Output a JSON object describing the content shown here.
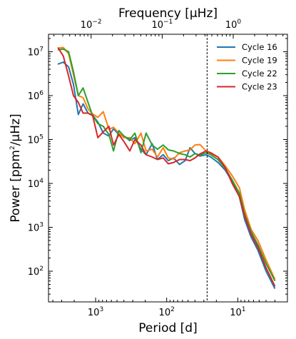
{
  "chart_data": {
    "type": "line",
    "xlabel": "Period [d]",
    "top_xlabel": "Frequency [μHz]",
    "ylabel_main": "Power [ppm",
    "ylabel_sup": "2",
    "ylabel_tail": "/μHz]",
    "xscale": "log",
    "yscale": "log",
    "x_reversed": true,
    "xlim": [
      4600,
      2.0
    ],
    "ylim": [
      20,
      25000000
    ],
    "grid": false,
    "legend_position": "top-right",
    "x_ticks": [
      {
        "value": 1000,
        "base": "10",
        "exp": "3"
      },
      {
        "value": 100,
        "base": "10",
        "exp": "2"
      },
      {
        "value": 10,
        "base": "10",
        "exp": "1"
      }
    ],
    "top_ticks": [
      {
        "freq": 0.01,
        "base": "10",
        "exp": "−2"
      },
      {
        "freq": 0.1,
        "base": "10",
        "exp": "−1"
      },
      {
        "freq": 1,
        "base": "10",
        "exp": "0"
      }
    ],
    "y_ticks": [
      {
        "value": 100,
        "base": "10",
        "exp": "2"
      },
      {
        "value": 1000,
        "base": "10",
        "exp": "3"
      },
      {
        "value": 10000,
        "base": "10",
        "exp": "4"
      },
      {
        "value": 100000,
        "base": "10",
        "exp": "5"
      },
      {
        "value": 1000000,
        "base": "10",
        "exp": "6"
      },
      {
        "value": 10000000,
        "base": "10",
        "exp": "7"
      }
    ],
    "vline": {
      "x": 27,
      "style": "dashed",
      "color": "#000000"
    },
    "series": [
      {
        "name": "Cycle 16",
        "color": "#1f77b4",
        "points": [
          [
            3400,
            5200000
          ],
          [
            2850,
            5800000
          ],
          [
            2400,
            4500000
          ],
          [
            2050,
            1800000
          ],
          [
            1750,
            370000
          ],
          [
            1500,
            650000
          ],
          [
            1280,
            400000
          ],
          [
            1100,
            360000
          ],
          [
            930,
            250000
          ],
          [
            780,
            140000
          ],
          [
            650,
            120000
          ],
          [
            560,
            175000
          ],
          [
            470,
            130000
          ],
          [
            400,
            120000
          ],
          [
            330,
            95000
          ],
          [
            280,
            110000
          ],
          [
            230,
            60000
          ],
          [
            195,
            45000
          ],
          [
            160,
            80000
          ],
          [
            135,
            35000
          ],
          [
            112,
            45000
          ],
          [
            95,
            33000
          ],
          [
            80,
            38000
          ],
          [
            66,
            27000
          ],
          [
            55,
            33000
          ],
          [
            47,
            65000
          ],
          [
            40,
            48000
          ],
          [
            34,
            42000
          ],
          [
            28,
            45000
          ],
          [
            24,
            40000
          ],
          [
            19,
            30000
          ],
          [
            15,
            20000
          ],
          [
            12,
            11000
          ],
          [
            9.5,
            5000
          ],
          [
            8,
            1500
          ],
          [
            6.5,
            600
          ],
          [
            5.2,
            300
          ],
          [
            4,
            100
          ],
          [
            3,
            40
          ]
        ]
      },
      {
        "name": "Cycle 19",
        "color": "#ff7f0e",
        "points": [
          [
            3400,
            12000000
          ],
          [
            2850,
            12500000
          ],
          [
            2400,
            9000000
          ],
          [
            2050,
            3000000
          ],
          [
            1750,
            1000000
          ],
          [
            1500,
            900000
          ],
          [
            1280,
            500000
          ],
          [
            1100,
            380000
          ],
          [
            930,
            320000
          ],
          [
            780,
            430000
          ],
          [
            650,
            170000
          ],
          [
            560,
            190000
          ],
          [
            470,
            140000
          ],
          [
            400,
            110000
          ],
          [
            330,
            110000
          ],
          [
            280,
            80000
          ],
          [
            230,
            140000
          ],
          [
            195,
            55000
          ],
          [
            160,
            60000
          ],
          [
            135,
            40000
          ],
          [
            112,
            65000
          ],
          [
            95,
            38000
          ],
          [
            80,
            36000
          ],
          [
            66,
            50000
          ],
          [
            55,
            55000
          ],
          [
            47,
            58000
          ],
          [
            40,
            75000
          ],
          [
            34,
            77000
          ],
          [
            28,
            55000
          ],
          [
            24,
            48000
          ],
          [
            19,
            40000
          ],
          [
            15,
            25000
          ],
          [
            12,
            15000
          ],
          [
            9.5,
            8000
          ],
          [
            8,
            2500
          ],
          [
            6.5,
            900
          ],
          [
            5.2,
            500
          ],
          [
            4,
            180
          ],
          [
            3,
            65
          ]
        ]
      },
      {
        "name": "Cycle 22",
        "color": "#2ca02c",
        "points": [
          [
            3400,
            11000000
          ],
          [
            2850,
            11500000
          ],
          [
            2400,
            10000000
          ],
          [
            2050,
            3500000
          ],
          [
            1750,
            1000000
          ],
          [
            1500,
            1500000
          ],
          [
            1280,
            700000
          ],
          [
            1100,
            350000
          ],
          [
            930,
            230000
          ],
          [
            780,
            200000
          ],
          [
            650,
            130000
          ],
          [
            560,
            55000
          ],
          [
            470,
            160000
          ],
          [
            400,
            120000
          ],
          [
            330,
            100000
          ],
          [
            280,
            140000
          ],
          [
            230,
            50000
          ],
          [
            195,
            140000
          ],
          [
            160,
            75000
          ],
          [
            135,
            60000
          ],
          [
            112,
            75000
          ],
          [
            95,
            58000
          ],
          [
            80,
            55000
          ],
          [
            66,
            48000
          ],
          [
            55,
            45000
          ],
          [
            47,
            40000
          ],
          [
            40,
            48000
          ],
          [
            34,
            44000
          ],
          [
            28,
            50000
          ],
          [
            24,
            45000
          ],
          [
            19,
            35000
          ],
          [
            15,
            22000
          ],
          [
            12,
            12000
          ],
          [
            9.5,
            6000
          ],
          [
            8,
            2000
          ],
          [
            6.5,
            800
          ],
          [
            5.2,
            400
          ],
          [
            4,
            150
          ],
          [
            3,
            60
          ]
        ]
      },
      {
        "name": "Cycle 23",
        "color": "#d62728",
        "points": [
          [
            3400,
            12500000
          ],
          [
            2850,
            8000000
          ],
          [
            2400,
            2800000
          ],
          [
            2050,
            1000000
          ],
          [
            1750,
            700000
          ],
          [
            1500,
            400000
          ],
          [
            1280,
            400000
          ],
          [
            1100,
            350000
          ],
          [
            930,
            110000
          ],
          [
            780,
            150000
          ],
          [
            650,
            200000
          ],
          [
            560,
            75000
          ],
          [
            470,
            130000
          ],
          [
            400,
            90000
          ],
          [
            330,
            55000
          ],
          [
            280,
            100000
          ],
          [
            230,
            75000
          ],
          [
            195,
            45000
          ],
          [
            160,
            40000
          ],
          [
            135,
            35000
          ],
          [
            112,
            38000
          ],
          [
            95,
            28000
          ],
          [
            80,
            30000
          ],
          [
            66,
            35000
          ],
          [
            55,
            35000
          ],
          [
            47,
            33000
          ],
          [
            40,
            38000
          ],
          [
            34,
            47000
          ],
          [
            28,
            55000
          ],
          [
            24,
            50000
          ],
          [
            19,
            40000
          ],
          [
            15,
            23000
          ],
          [
            12,
            10000
          ],
          [
            9.5,
            5000
          ],
          [
            8,
            1800
          ],
          [
            6.5,
            700
          ],
          [
            5.2,
            350
          ],
          [
            4,
            120
          ],
          [
            3,
            45
          ]
        ]
      }
    ]
  }
}
